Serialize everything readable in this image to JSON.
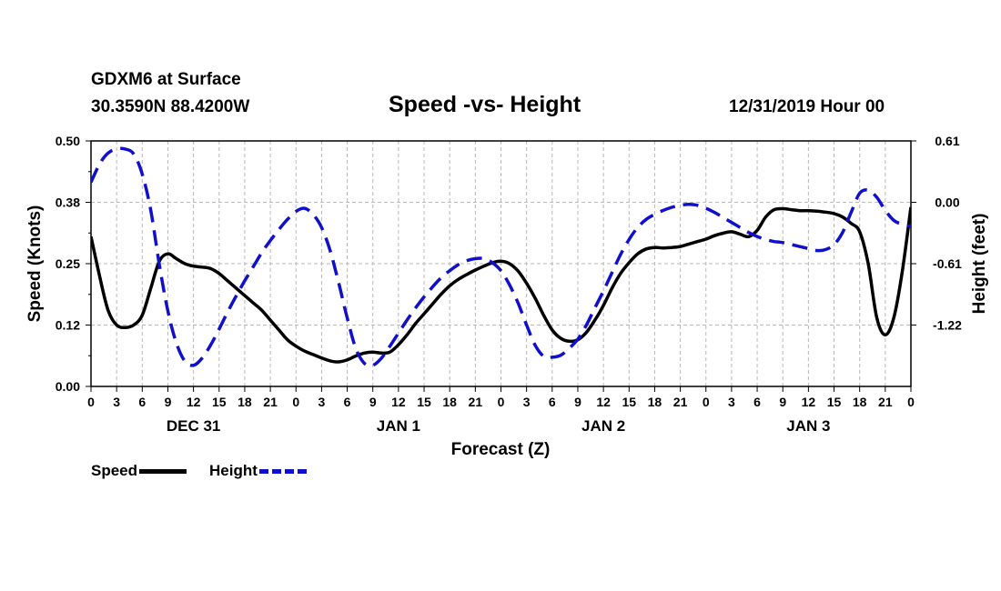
{
  "header": {
    "station": "GDXM6 at Surface",
    "coords": "30.3590N 88.4200W",
    "title": "Speed -vs- Height",
    "date": "12/31/2019 Hour 00"
  },
  "legend": {
    "speed_label": "Speed",
    "height_label": "Height"
  },
  "colors": {
    "speed": "#000000",
    "height": "#1010cc",
    "grid": "#b8b8b8"
  },
  "chart_data": {
    "type": "line",
    "title": "Speed -vs- Height",
    "xlabel": "Forecast (Z)",
    "ylabel_left": "Speed (Knots)",
    "ylabel_right": "Height (feet)",
    "xlim_hours": [
      0,
      96
    ],
    "x_tick_labels": [
      "0",
      "3",
      "6",
      "9",
      "12",
      "15",
      "18",
      "21",
      "0",
      "3",
      "6",
      "9",
      "12",
      "15",
      "18",
      "21",
      "0",
      "3",
      "6",
      "9",
      "12",
      "15",
      "18",
      "21",
      "0",
      "3",
      "6",
      "9",
      "12",
      "15",
      "18",
      "21",
      "0"
    ],
    "day_labels": [
      {
        "label": "DEC 31",
        "hour": 12
      },
      {
        "label": "JAN 1",
        "hour": 36
      },
      {
        "label": "JAN 2",
        "hour": 60
      },
      {
        "label": "JAN 3",
        "hour": 84
      }
    ],
    "left_axis": {
      "min": 0.0,
      "max": 0.5,
      "ticks": [
        0.0,
        0.125,
        0.25,
        0.375,
        0.5
      ],
      "tick_labels": [
        "0.00",
        "0.12",
        "0.25",
        "0.38",
        "0.50"
      ]
    },
    "right_axis": {
      "min": -1.83,
      "max": 0.61,
      "ticks": [
        0.61,
        0.0,
        -0.61,
        -1.22
      ],
      "tick_labels": [
        "0.61",
        "0.00",
        "-0.61",
        "-1.22"
      ]
    },
    "grid": true,
    "series": [
      {
        "name": "Speed",
        "axis": "left",
        "style": "solid",
        "x": [
          0,
          1,
          2,
          3,
          4,
          5,
          6,
          7,
          8,
          9,
          10,
          11,
          12,
          13,
          14,
          15,
          16,
          17,
          18,
          19,
          20,
          21,
          22,
          23,
          24,
          25,
          26,
          27,
          28,
          29,
          30,
          31,
          32,
          33,
          34,
          35,
          36,
          37,
          38,
          39,
          40,
          41,
          42,
          43,
          44,
          45,
          46,
          47,
          48,
          49,
          50,
          51,
          52,
          53,
          54,
          55,
          56,
          57,
          58,
          59,
          60,
          61,
          62,
          63,
          64,
          65,
          66,
          67,
          68,
          69,
          70,
          71,
          72,
          73,
          74,
          75,
          76,
          77,
          78,
          79,
          80,
          81,
          82,
          83,
          84,
          85,
          86,
          87,
          88,
          89,
          90,
          91,
          92,
          93,
          94,
          95,
          96
        ],
        "values": [
          0.305,
          0.225,
          0.155,
          0.125,
          0.12,
          0.125,
          0.145,
          0.2,
          0.255,
          0.27,
          0.26,
          0.25,
          0.245,
          0.243,
          0.24,
          0.23,
          0.215,
          0.2,
          0.185,
          0.17,
          0.155,
          0.135,
          0.115,
          0.095,
          0.082,
          0.072,
          0.065,
          0.058,
          0.052,
          0.05,
          0.054,
          0.062,
          0.068,
          0.07,
          0.068,
          0.07,
          0.085,
          0.105,
          0.128,
          0.148,
          0.168,
          0.188,
          0.205,
          0.218,
          0.228,
          0.237,
          0.245,
          0.252,
          0.255,
          0.25,
          0.235,
          0.21,
          0.18,
          0.145,
          0.115,
          0.098,
          0.092,
          0.095,
          0.11,
          0.135,
          0.165,
          0.2,
          0.23,
          0.252,
          0.27,
          0.28,
          0.283,
          0.282,
          0.283,
          0.285,
          0.29,
          0.295,
          0.3,
          0.307,
          0.312,
          0.315,
          0.31,
          0.305,
          0.318,
          0.345,
          0.36,
          0.362,
          0.36,
          0.358,
          0.358,
          0.357,
          0.355,
          0.352,
          0.345,
          0.332,
          0.315,
          0.25,
          0.14,
          0.105,
          0.14,
          0.235,
          0.365
        ]
      },
      {
        "name": "Height",
        "axis": "right",
        "style": "dashed",
        "x": [
          0,
          1,
          2,
          3,
          4,
          5,
          6,
          7,
          8,
          9,
          10,
          11,
          12,
          13,
          14,
          15,
          16,
          17,
          18,
          19,
          20,
          21,
          22,
          23,
          24,
          25,
          26,
          27,
          28,
          29,
          30,
          31,
          32,
          33,
          34,
          35,
          36,
          37,
          38,
          39,
          40,
          41,
          42,
          43,
          44,
          45,
          46,
          47,
          48,
          49,
          50,
          51,
          52,
          53,
          54,
          55,
          56,
          57,
          58,
          59,
          60,
          61,
          62,
          63,
          64,
          65,
          66,
          67,
          68,
          69,
          70,
          71,
          72,
          73,
          74,
          75,
          76,
          77,
          78,
          79,
          80,
          81,
          82,
          83,
          84,
          85,
          86,
          87,
          88,
          89,
          90,
          91,
          92,
          93,
          94,
          95,
          96
        ],
        "values": [
          0.2,
          0.38,
          0.49,
          0.53,
          0.53,
          0.48,
          0.28,
          -0.08,
          -0.62,
          -1.08,
          -1.4,
          -1.58,
          -1.62,
          -1.55,
          -1.42,
          -1.26,
          -1.09,
          -0.93,
          -0.78,
          -0.64,
          -0.5,
          -0.38,
          -0.27,
          -0.17,
          -0.09,
          -0.06,
          -0.12,
          -0.25,
          -0.48,
          -0.8,
          -1.15,
          -1.45,
          -1.6,
          -1.62,
          -1.55,
          -1.43,
          -1.3,
          -1.17,
          -1.05,
          -0.94,
          -0.84,
          -0.75,
          -0.68,
          -0.62,
          -0.58,
          -0.56,
          -0.56,
          -0.6,
          -0.68,
          -0.82,
          -1.0,
          -1.22,
          -1.42,
          -1.53,
          -1.54,
          -1.52,
          -1.45,
          -1.36,
          -1.22,
          -1.05,
          -0.88,
          -0.7,
          -0.52,
          -0.37,
          -0.25,
          -0.17,
          -0.12,
          -0.08,
          -0.05,
          -0.03,
          -0.02,
          -0.03,
          -0.06,
          -0.1,
          -0.15,
          -0.2,
          -0.25,
          -0.3,
          -0.34,
          -0.37,
          -0.39,
          -0.4,
          -0.42,
          -0.44,
          -0.46,
          -0.48,
          -0.47,
          -0.42,
          -0.3,
          -0.1,
          0.09,
          0.12,
          0.05,
          -0.08,
          -0.18,
          -0.22,
          -0.24
        ]
      }
    ]
  }
}
